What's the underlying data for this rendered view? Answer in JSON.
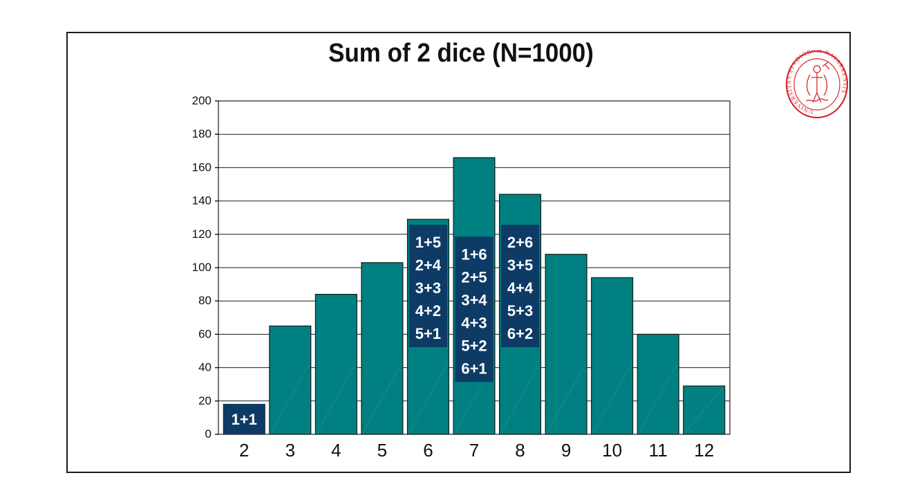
{
  "chart_data": {
    "type": "bar",
    "title": "Sum of 2 dice (N=1000)",
    "xlabel": "",
    "ylabel": "",
    "categories": [
      "2",
      "3",
      "4",
      "5",
      "6",
      "7",
      "8",
      "9",
      "10",
      "11",
      "12"
    ],
    "values": [
      18,
      65,
      84,
      103,
      129,
      166,
      144,
      108,
      94,
      60,
      29
    ],
    "ylim": [
      0,
      200
    ],
    "yticks": [
      "0",
      "20",
      "40",
      "60",
      "80",
      "100",
      "120",
      "140",
      "160",
      "180",
      "200"
    ],
    "grid": true,
    "legend": "none",
    "colors": {
      "bar": "#008080",
      "bar_edge": "#1a1a1a",
      "label_box": "#0d3b66"
    },
    "combination_labels": [
      {
        "category": "2",
        "combos": [
          "1+1"
        ]
      },
      {
        "category": "6",
        "combos": [
          "1+5",
          "2+4",
          "3+3",
          "4+2",
          "5+1"
        ]
      },
      {
        "category": "7",
        "combos": [
          "1+6",
          "2+5",
          "3+4",
          "4+3",
          "5+2",
          "6+1"
        ]
      },
      {
        "category": "8",
        "combos": [
          "2+6",
          "3+5",
          "4+4",
          "5+3",
          "6+2"
        ]
      }
    ]
  },
  "seal": {
    "name": "university-seal",
    "color": "#d9262c",
    "text": "UNIVERSITAS STVDIORVM NAVARRENSIS"
  }
}
